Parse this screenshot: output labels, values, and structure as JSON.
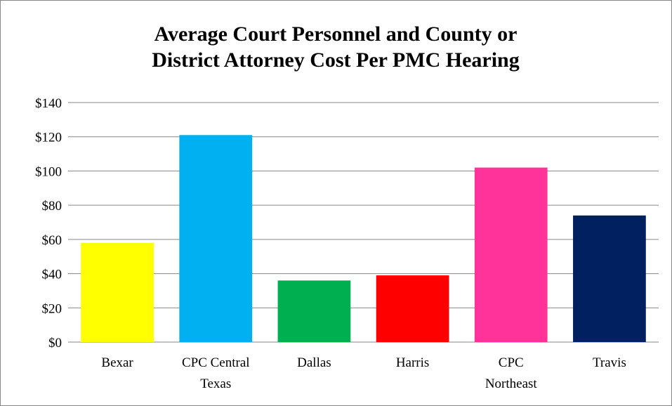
{
  "chart_data": {
    "type": "bar",
    "title": "Average Court Personnel and County or District Attorney Cost Per PMC Hearing",
    "categories": [
      "Bexar",
      "CPC Central Texas",
      "Dallas",
      "Harris",
      "CPC Northeast",
      "Travis"
    ],
    "values": [
      58,
      121,
      36,
      39,
      102,
      74
    ],
    "colors": [
      "#ffff00",
      "#00b0f0",
      "#00b050",
      "#ff0000",
      "#ff3399",
      "#002060"
    ],
    "ylim": [
      0,
      140
    ],
    "yticks": [
      {
        "value": 0,
        "label": "$0"
      },
      {
        "value": 20,
        "label": "$20"
      },
      {
        "value": 40,
        "label": "$40"
      },
      {
        "value": 60,
        "label": "$60"
      },
      {
        "value": 80,
        "label": "$80"
      },
      {
        "value": 100,
        "label": "$100"
      },
      {
        "value": 120,
        "label": "$120"
      },
      {
        "value": 140,
        "label": "$140"
      }
    ],
    "grid": true
  }
}
